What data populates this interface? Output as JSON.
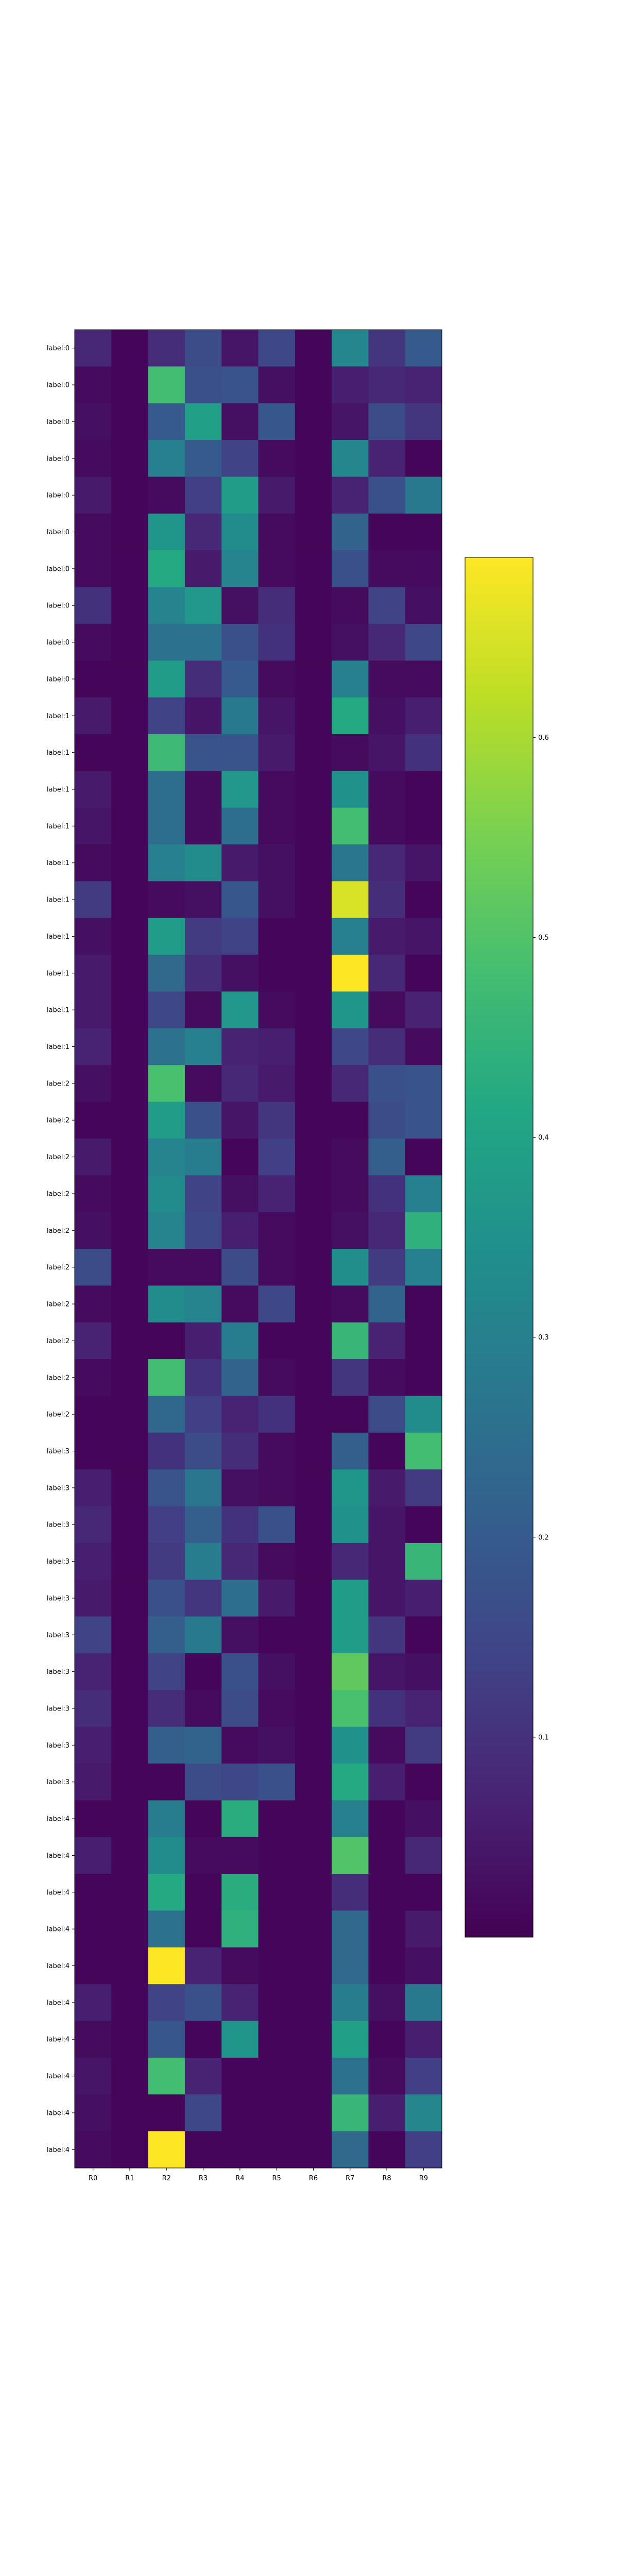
{
  "chart_data": {
    "type": "heatmap",
    "title": "",
    "xlabel": "",
    "ylabel": "",
    "x": [
      "R0",
      "R1",
      "R2",
      "R3",
      "R4",
      "R5",
      "R6",
      "R7",
      "R8",
      "R9"
    ],
    "y": [
      "label:0",
      "label:0",
      "label:0",
      "label:0",
      "label:0",
      "label:0",
      "label:0",
      "label:0",
      "label:0",
      "label:0",
      "label:1",
      "label:1",
      "label:1",
      "label:1",
      "label:1",
      "label:1",
      "label:1",
      "label:1",
      "label:1",
      "label:1",
      "label:2",
      "label:2",
      "label:2",
      "label:2",
      "label:2",
      "label:2",
      "label:2",
      "label:2",
      "label:2",
      "label:2",
      "label:3",
      "label:3",
      "label:3",
      "label:3",
      "label:3",
      "label:3",
      "label:3",
      "label:3",
      "label:3",
      "label:3",
      "label:4",
      "label:4",
      "label:4",
      "label:4",
      "label:4",
      "label:4",
      "label:4",
      "label:4",
      "label:4",
      "label:4"
    ],
    "values": [
      [
        0.08,
        0.01,
        0.09,
        0.16,
        0.04,
        0.15,
        0.01,
        0.32,
        0.11,
        0.2
      ],
      [
        0.02,
        0.01,
        0.48,
        0.17,
        0.18,
        0.03,
        0.01,
        0.06,
        0.08,
        0.07
      ],
      [
        0.03,
        0.01,
        0.2,
        0.39,
        0.03,
        0.19,
        0.01,
        0.04,
        0.16,
        0.11
      ],
      [
        0.02,
        0.01,
        0.3,
        0.2,
        0.14,
        0.02,
        0.01,
        0.32,
        0.07,
        0.01
      ],
      [
        0.05,
        0.01,
        0.02,
        0.13,
        0.38,
        0.05,
        0.01,
        0.07,
        0.17,
        0.28
      ],
      [
        0.02,
        0.01,
        0.36,
        0.08,
        0.33,
        0.02,
        0.01,
        0.22,
        0.01,
        0.01
      ],
      [
        0.02,
        0.01,
        0.42,
        0.05,
        0.31,
        0.02,
        0.01,
        0.17,
        0.02,
        0.02
      ],
      [
        0.1,
        0.01,
        0.31,
        0.37,
        0.03,
        0.09,
        0.01,
        0.02,
        0.14,
        0.03
      ],
      [
        0.02,
        0.01,
        0.26,
        0.26,
        0.17,
        0.1,
        0.01,
        0.03,
        0.08,
        0.15
      ],
      [
        0.01,
        0.01,
        0.38,
        0.09,
        0.2,
        0.02,
        0.01,
        0.3,
        0.02,
        0.02
      ],
      [
        0.05,
        0.01,
        0.14,
        0.04,
        0.28,
        0.04,
        0.01,
        0.42,
        0.03,
        0.06
      ],
      [
        0.01,
        0.01,
        0.47,
        0.18,
        0.18,
        0.05,
        0.01,
        0.02,
        0.04,
        0.1
      ],
      [
        0.05,
        0.01,
        0.25,
        0.02,
        0.37,
        0.02,
        0.01,
        0.35,
        0.02,
        0.01
      ],
      [
        0.04,
        0.01,
        0.25,
        0.02,
        0.25,
        0.02,
        0.01,
        0.48,
        0.02,
        0.01
      ],
      [
        0.02,
        0.01,
        0.3,
        0.33,
        0.05,
        0.03,
        0.01,
        0.27,
        0.08,
        0.04
      ],
      [
        0.12,
        0.01,
        0.02,
        0.03,
        0.19,
        0.03,
        0.01,
        0.65,
        0.09,
        0.01
      ],
      [
        0.03,
        0.01,
        0.38,
        0.12,
        0.14,
        0.01,
        0.01,
        0.3,
        0.05,
        0.04
      ],
      [
        0.05,
        0.01,
        0.24,
        0.09,
        0.03,
        0.01,
        0.01,
        0.69,
        0.08,
        0.01
      ],
      [
        0.05,
        0.01,
        0.15,
        0.02,
        0.37,
        0.02,
        0.01,
        0.36,
        0.02,
        0.07
      ],
      [
        0.07,
        0.01,
        0.26,
        0.3,
        0.07,
        0.06,
        0.01,
        0.15,
        0.09,
        0.02
      ],
      [
        0.03,
        0.01,
        0.49,
        0.02,
        0.08,
        0.05,
        0.01,
        0.08,
        0.17,
        0.18
      ],
      [
        0.01,
        0.01,
        0.38,
        0.17,
        0.04,
        0.11,
        0.01,
        0.01,
        0.16,
        0.18
      ],
      [
        0.05,
        0.01,
        0.31,
        0.29,
        0.01,
        0.13,
        0.01,
        0.02,
        0.21,
        0.01
      ],
      [
        0.02,
        0.01,
        0.33,
        0.14,
        0.03,
        0.07,
        0.01,
        0.02,
        0.1,
        0.3
      ],
      [
        0.03,
        0.01,
        0.31,
        0.15,
        0.06,
        0.02,
        0.01,
        0.03,
        0.08,
        0.44
      ],
      [
        0.16,
        0.01,
        0.02,
        0.02,
        0.16,
        0.02,
        0.01,
        0.34,
        0.12,
        0.3
      ],
      [
        0.02,
        0.01,
        0.33,
        0.31,
        0.02,
        0.15,
        0.01,
        0.02,
        0.22,
        0.01
      ],
      [
        0.07,
        0.01,
        0.01,
        0.06,
        0.29,
        0.01,
        0.01,
        0.46,
        0.07,
        0.01
      ],
      [
        0.02,
        0.01,
        0.48,
        0.1,
        0.22,
        0.02,
        0.01,
        0.11,
        0.02,
        0.01
      ],
      [
        0.01,
        0.01,
        0.23,
        0.13,
        0.07,
        0.1,
        0.01,
        0.01,
        0.16,
        0.33
      ],
      [
        0.01,
        0.01,
        0.1,
        0.16,
        0.09,
        0.02,
        0.01,
        0.21,
        0.01,
        0.48
      ],
      [
        0.06,
        0.01,
        0.18,
        0.27,
        0.03,
        0.02,
        0.01,
        0.36,
        0.05,
        0.12
      ],
      [
        0.08,
        0.01,
        0.13,
        0.21,
        0.1,
        0.17,
        0.01,
        0.35,
        0.04,
        0.01
      ],
      [
        0.06,
        0.01,
        0.12,
        0.29,
        0.08,
        0.02,
        0.01,
        0.08,
        0.04,
        0.46
      ],
      [
        0.05,
        0.01,
        0.17,
        0.11,
        0.25,
        0.05,
        0.01,
        0.38,
        0.04,
        0.06
      ],
      [
        0.14,
        0.01,
        0.21,
        0.28,
        0.03,
        0.01,
        0.01,
        0.38,
        0.11,
        0.01
      ],
      [
        0.07,
        0.01,
        0.14,
        0.01,
        0.17,
        0.03,
        0.01,
        0.52,
        0.04,
        0.03
      ],
      [
        0.09,
        0.01,
        0.09,
        0.02,
        0.16,
        0.02,
        0.01,
        0.49,
        0.1,
        0.07
      ],
      [
        0.06,
        0.01,
        0.21,
        0.22,
        0.02,
        0.03,
        0.01,
        0.35,
        0.02,
        0.12
      ],
      [
        0.05,
        0.01,
        0.01,
        0.16,
        0.15,
        0.17,
        0.01,
        0.42,
        0.06,
        0.01
      ],
      [
        0.01,
        0.01,
        0.29,
        0.01,
        0.43,
        0.01,
        0.01,
        0.3,
        0.01,
        0.03
      ],
      [
        0.06,
        0.01,
        0.33,
        0.02,
        0.02,
        0.01,
        0.01,
        0.5,
        0.01,
        0.08
      ],
      [
        0.01,
        0.01,
        0.42,
        0.01,
        0.43,
        0.01,
        0.01,
        0.09,
        0.01,
        0.01
      ],
      [
        0.01,
        0.01,
        0.26,
        0.01,
        0.44,
        0.01,
        0.01,
        0.24,
        0.01,
        0.05
      ],
      [
        0.01,
        0.01,
        0.69,
        0.07,
        0.02,
        0.01,
        0.01,
        0.24,
        0.01,
        0.03
      ],
      [
        0.06,
        0.01,
        0.14,
        0.17,
        0.07,
        0.01,
        0.01,
        0.29,
        0.03,
        0.28
      ],
      [
        0.02,
        0.01,
        0.19,
        0.01,
        0.36,
        0.01,
        0.01,
        0.39,
        0.01,
        0.06
      ],
      [
        0.04,
        0.01,
        0.48,
        0.07,
        0.01,
        0.01,
        0.01,
        0.26,
        0.02,
        0.13
      ],
      [
        0.03,
        0.01,
        0.01,
        0.15,
        0.01,
        0.01,
        0.01,
        0.46,
        0.06,
        0.32
      ],
      [
        0.02,
        0.01,
        0.69,
        0.01,
        0.01,
        0.01,
        0.01,
        0.24,
        0.01,
        0.13
      ]
    ],
    "colormap": "viridis",
    "vmin": 0.0,
    "vmax": 0.69,
    "colorbar": {
      "ticks": [
        0.1,
        0.2,
        0.3,
        0.4,
        0.5,
        0.6
      ],
      "tick_labels": [
        "0.1",
        "0.2",
        "0.3",
        "0.4",
        "0.5",
        "0.6"
      ]
    },
    "grid": false,
    "legend": "none"
  }
}
